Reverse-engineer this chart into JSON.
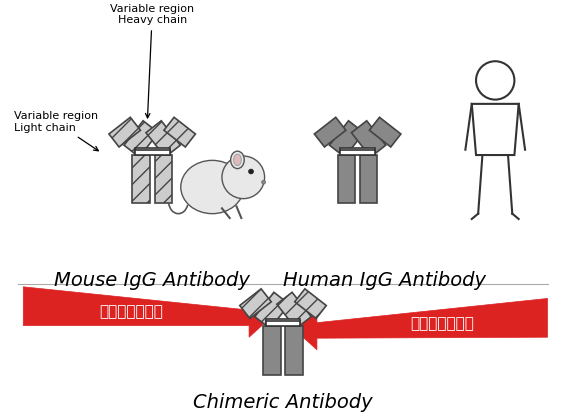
{
  "background_color": "#ffffff",
  "title_mouse": "Mouse IgG Antibody",
  "title_human": "Human IgG Antibody",
  "title_chimeric": "Chimeric Antibody",
  "label_variable_heavy": "Variable region\nHeavy chain",
  "label_variable_light": "Variable region\nLight chain",
  "arrow_left_text": "鼠源抗体可变区",
  "arrow_right_text": "人源抗体恒定区",
  "arrow_color": "#dd2222",
  "hatch_fc": "#cccccc",
  "hatch_ec": "#444444",
  "const_fc": "#888888",
  "const_ec": "#444444",
  "line_color": "#333333",
  "text_color": "#000000",
  "title_fontsize": 14,
  "label_fontsize": 8,
  "arrow_fontsize": 11
}
